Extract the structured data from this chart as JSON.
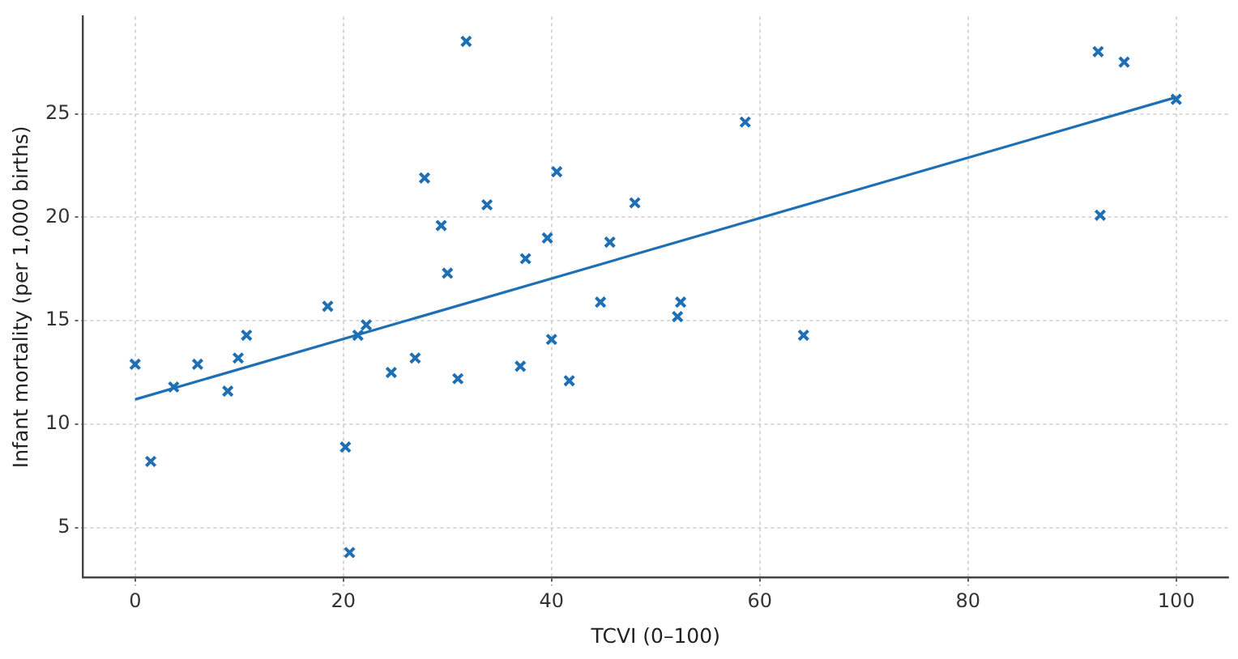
{
  "chart_data": {
    "type": "scatter",
    "xlabel": "TCVI (0–100)",
    "ylabel": "Infant mortality (per 1,000 births)",
    "xlim": [
      -5,
      105
    ],
    "ylim": [
      2.6,
      29.7
    ],
    "xticks": [
      0,
      20,
      40,
      60,
      80,
      100
    ],
    "yticks": [
      5,
      10,
      15,
      20,
      25
    ],
    "grid": true,
    "legend": false,
    "marker": "cross",
    "series": [
      {
        "color": "#1f6fb4",
        "x": [
          0,
          1.5,
          3.7,
          6.0,
          8.9,
          9.9,
          10.7,
          18.5,
          20.2,
          20.6,
          21.4,
          22.2,
          24.6,
          26.9,
          27.8,
          29.4,
          30.0,
          31.0,
          31.8,
          33.8,
          37.0,
          37.5,
          39.6,
          40.0,
          40.5,
          41.7,
          44.7,
          45.6,
          48.0,
          52.1,
          52.4,
          58.6,
          64.2,
          92.5,
          92.7,
          95.0,
          100
        ],
        "values": [
          12.9,
          8.2,
          11.8,
          12.9,
          11.6,
          13.2,
          14.3,
          15.7,
          8.9,
          3.8,
          14.3,
          14.8,
          12.5,
          13.2,
          21.9,
          19.6,
          17.3,
          12.2,
          28.5,
          20.6,
          12.8,
          18.0,
          19.0,
          14.1,
          22.2,
          12.1,
          15.9,
          18.8,
          20.7,
          15.2,
          15.9,
          24.6,
          14.3,
          28.0,
          20.1,
          27.5,
          25.7
        ]
      },
      {
        "type": "line",
        "color": "#1f6fb4",
        "x": [
          0,
          100
        ],
        "values": [
          11.2,
          25.8
        ],
        "marker": "none"
      }
    ]
  }
}
